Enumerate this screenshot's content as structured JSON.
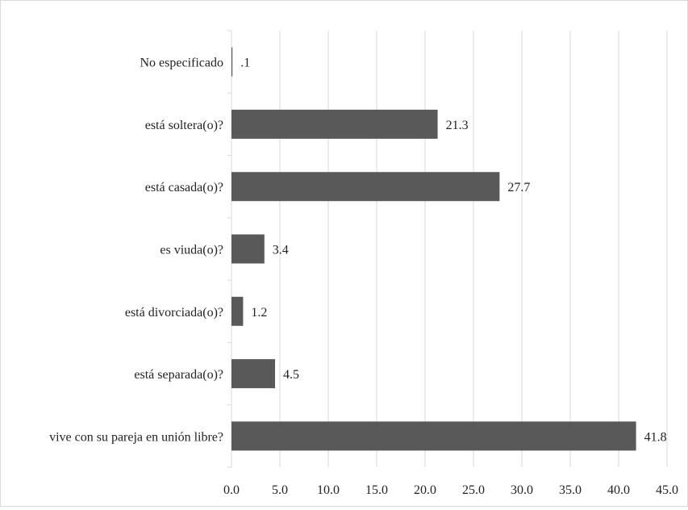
{
  "chart_data": {
    "type": "bar",
    "orientation": "horizontal",
    "categories": [
      "No especificado",
      "está soltera(o)?",
      "está casada(o)?",
      "es viuda(o)?",
      "está divorciada(o)?",
      "está separada(o)?",
      "vive con su pareja en unión libre?"
    ],
    "values": [
      0.1,
      21.3,
      27.7,
      3.4,
      1.2,
      4.5,
      41.8
    ],
    "value_labels": [
      ".1",
      "21.3",
      "27.7",
      "3.4",
      "1.2",
      "4.5",
      "41.8"
    ],
    "xlim": [
      0,
      45
    ],
    "x_ticks": [
      "0.0",
      "5.0",
      "10.0",
      "15.0",
      "20.0",
      "25.0",
      "30.0",
      "35.0",
      "40.0",
      "45.0"
    ],
    "grid": true,
    "legend": "none",
    "bar_color": "#595959",
    "grid_color": "#d9d9d9"
  }
}
